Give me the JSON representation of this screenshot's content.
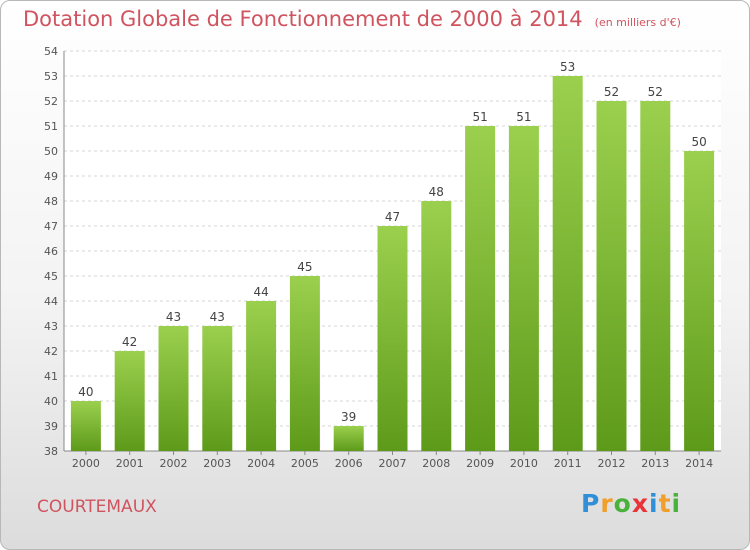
{
  "chart_data": {
    "type": "bar",
    "title": "Dotation Globale de Fonctionnement de 2000 à 2014",
    "subtitle": "(en milliers d'€)",
    "categories": [
      "2000",
      "2001",
      "2002",
      "2003",
      "2004",
      "2005",
      "2006",
      "2007",
      "2008",
      "2009",
      "2010",
      "2011",
      "2012",
      "2013",
      "2014"
    ],
    "values": [
      40,
      42,
      43,
      43,
      44,
      45,
      39,
      47,
      48,
      51,
      51,
      53,
      52,
      52,
      50
    ],
    "data_labels": [
      "40",
      "42",
      "43",
      "43",
      "44",
      "45",
      "39",
      "47",
      "48",
      "51",
      "51",
      "53",
      "52",
      "52",
      "50"
    ],
    "y_ticks": [
      "38",
      "39",
      "40",
      "41",
      "42",
      "43",
      "44",
      "45",
      "46",
      "47",
      "48",
      "49",
      "50",
      "51",
      "52",
      "53",
      "54"
    ],
    "ylim": [
      38,
      54
    ],
    "grid": true,
    "colors": {
      "bar_top": "#9bd04e",
      "bar_bottom": "#5e9a1a",
      "title": "#d0545f"
    }
  },
  "footer": {
    "town": "COURTEMAUX",
    "logo": [
      "P",
      "r",
      "o",
      "x",
      "i",
      "t",
      "i"
    ],
    "logo_colors": [
      "#2f8fd8",
      "#f0a02a",
      "#49b23b",
      "#e8333a",
      "#2f8fd8",
      "#f0a02a",
      "#49b23b"
    ]
  }
}
